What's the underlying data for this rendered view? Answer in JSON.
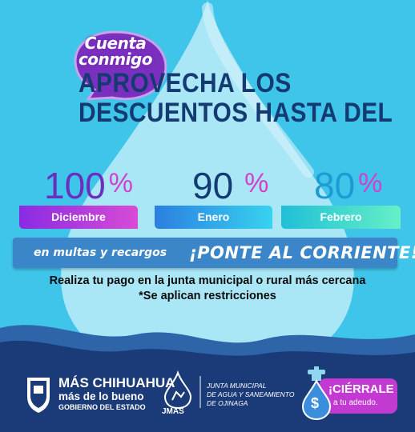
{
  "brand": {
    "line1": "Cuenta",
    "line2": "conmigo"
  },
  "headline": {
    "line1": "APROVECHA LOS",
    "line2": "DESCUENTOS HASTA DEL"
  },
  "discounts": [
    {
      "percent": "100",
      "symbol": "%",
      "month": "Diciembre"
    },
    {
      "percent": "90",
      "symbol": "%",
      "month": "Enero"
    },
    {
      "percent": "80",
      "symbol": "%",
      "month": "Febrero"
    }
  ],
  "band": {
    "left_text": "en multas y recargos",
    "right_text": "¡PONTE AL CORRIENTE!"
  },
  "info": {
    "line1": "Realiza tu pago en la junta municipal o rural más cercana",
    "line2": "*Se aplican restricciones"
  },
  "footer": {
    "gob_title": "MÁS CHIHUAHUA",
    "gob_subtitle": "más de lo bueno",
    "gob_state": "GOBIERNO DEL ESTADO",
    "jmas_label": "JMAS",
    "jmas_line1": "JUNTA MUNICIPAL",
    "jmas_line2": "DE AGUA Y SANEAMIENTO",
    "jmas_line3": "DE OJINAGA",
    "cierrale": "¡CIÉRRALE",
    "adeudo": "a tu adeudo.",
    "dollar": "$"
  },
  "colors": {
    "background": "#3fc4ea",
    "drop": "#a9e6f6",
    "navy": "#143a72",
    "purple": "#7b2fbf",
    "wave_dark": "#1a3a78"
  },
  "icons": [
    "shield-emblem-icon",
    "water-drop-icon",
    "faucet-icon",
    "dollar-drop-icon"
  ]
}
